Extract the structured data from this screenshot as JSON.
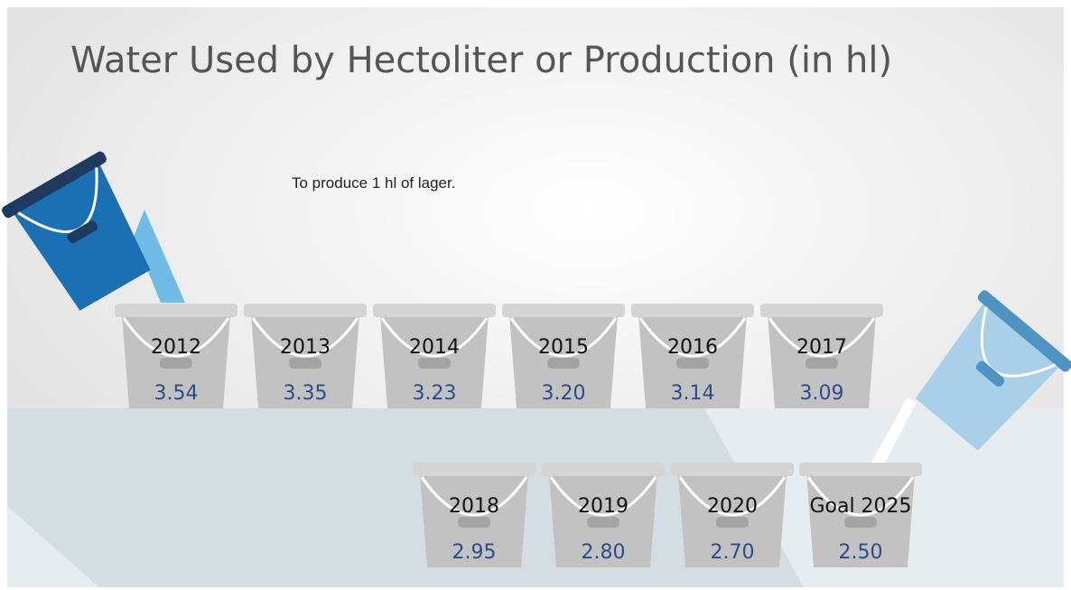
{
  "title": "Water Used by Hectoliter or Production (in hl)",
  "note": "To produce 1 hl of lager.",
  "buckets": [
    {
      "label": "2012",
      "value": "3.54"
    },
    {
      "label": "2013",
      "value": "3.35"
    },
    {
      "label": "2014",
      "value": "3.23"
    },
    {
      "label": "2015",
      "value": "3.20"
    },
    {
      "label": "2016",
      "value": "3.14"
    },
    {
      "label": "2017",
      "value": "3.09"
    },
    {
      "label": "2018",
      "value": "2.95"
    },
    {
      "label": "2019",
      "value": "2.80"
    },
    {
      "label": "2020",
      "value": "2.70"
    },
    {
      "label": "Goal 2025",
      "value": "2.50"
    }
  ]
}
